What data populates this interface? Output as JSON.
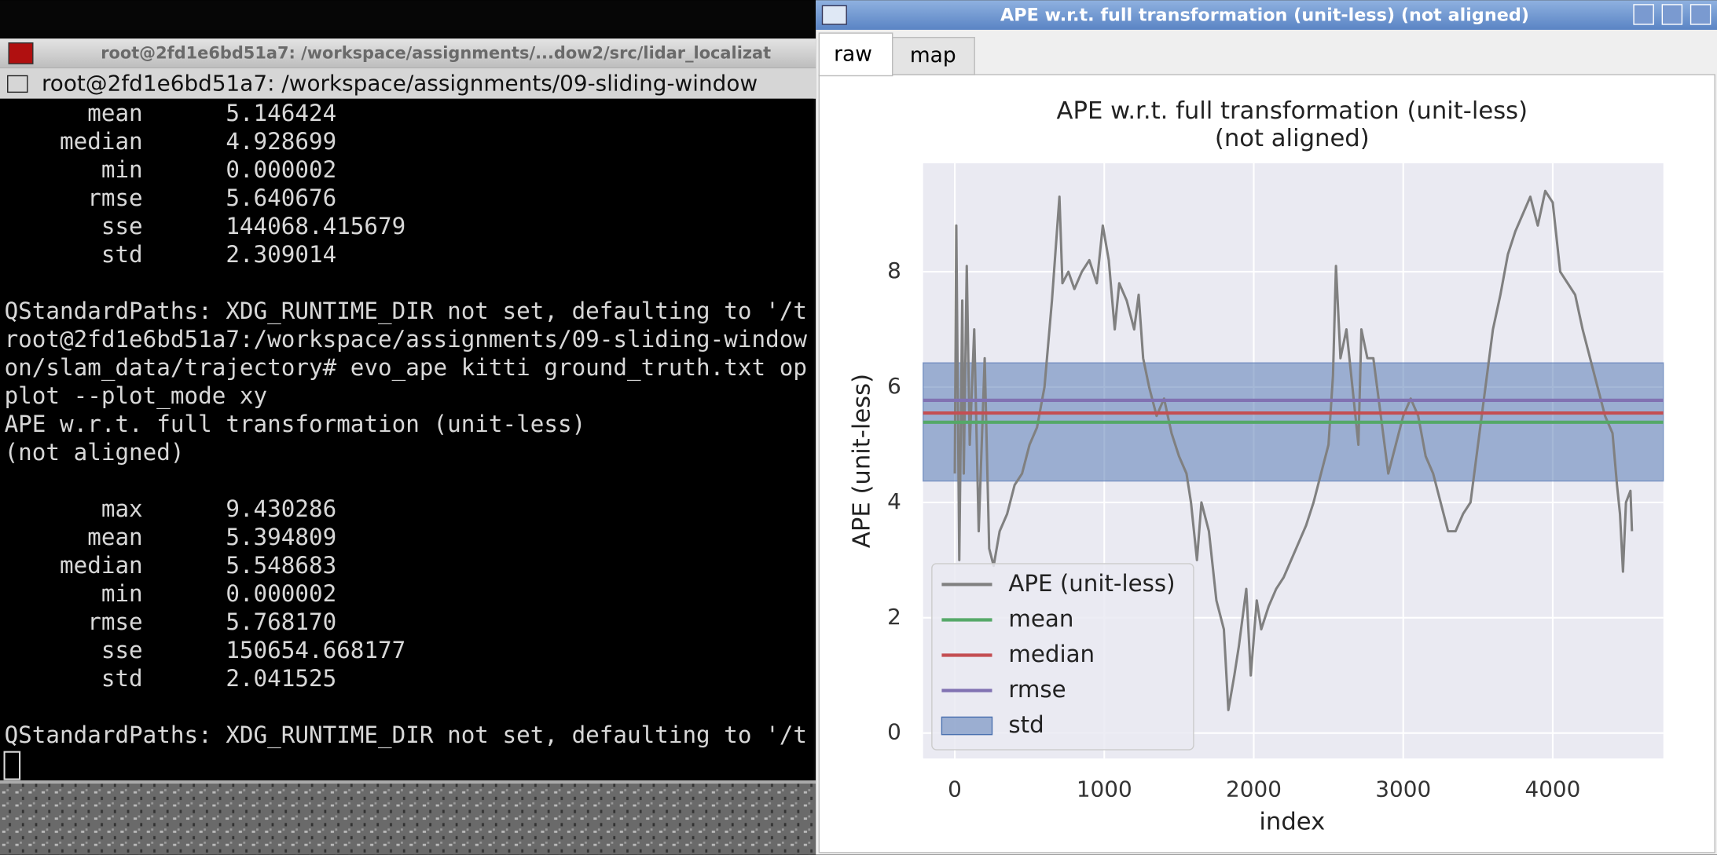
{
  "terminal": {
    "title": "root@2fd1e6bd51a7: /workspace/assignments/...dow2/src/lidar_localizat",
    "tab_title": "root@2fd1e6bd51a7: /workspace/assignments/09-sliding-window",
    "blocks": [
      [
        "      mean      5.146424",
        "    median      4.928699",
        "       min      0.000002",
        "      rmse      5.640676",
        "       sse      144068.415679",
        "       std      2.309014"
      ],
      [
        "QStandardPaths: XDG_RUNTIME_DIR not set, defaulting to '/t",
        "root@2fd1e6bd51a7:/workspace/assignments/09-sliding-window",
        "on/slam_data/trajectory# evo_ape kitti ground_truth.txt op",
        "plot --plot_mode xy",
        "APE w.r.t. full transformation (unit-less)",
        "(not aligned)"
      ],
      [
        "       max      9.430286",
        "      mean      5.394809",
        "    median      5.548683",
        "       min      0.000002",
        "      rmse      5.768170",
        "       sse      150654.668177",
        "       std      2.041525"
      ],
      [
        "QStandardPaths: XDG_RUNTIME_DIR not set, defaulting to '/t"
      ]
    ]
  },
  "plot_window": {
    "title": "APE w.r.t. full transformation (unit-less) (not aligned)",
    "tabs": [
      "raw",
      "map"
    ]
  },
  "chart_data": {
    "type": "line",
    "title": "APE w.r.t. full transformation (unit-less)",
    "subtitle": "(not aligned)",
    "x_label": "index",
    "y_label": "APE (unit-less)",
    "xlim": [
      -212,
      4740
    ],
    "ylim": [
      -0.44,
      9.88
    ],
    "xticks": [
      0,
      1000,
      2000,
      3000,
      4000
    ],
    "yticks": [
      0,
      2,
      4,
      6,
      8
    ],
    "grid": true,
    "series": [
      {
        "name": "APE (unit-less)",
        "color": "#808080",
        "kind": "line",
        "x": [
          0,
          10,
          30,
          50,
          60,
          80,
          100,
          130,
          160,
          200,
          230,
          260,
          300,
          350,
          400,
          450,
          500,
          550,
          600,
          650,
          700,
          720,
          760,
          800,
          850,
          900,
          950,
          990,
          1030,
          1070,
          1100,
          1150,
          1200,
          1230,
          1260,
          1300,
          1350,
          1400,
          1450,
          1500,
          1550,
          1580,
          1620,
          1650,
          1700,
          1750,
          1800,
          1830,
          1870,
          1900,
          1950,
          1980,
          2020,
          2050,
          2100,
          2150,
          2200,
          2250,
          2300,
          2350,
          2400,
          2450,
          2500,
          2530,
          2550,
          2580,
          2620,
          2660,
          2700,
          2720,
          2760,
          2800,
          2850,
          2900,
          2950,
          3000,
          3050,
          3100,
          3150,
          3200,
          3250,
          3300,
          3350,
          3400,
          3450,
          3500,
          3550,
          3600,
          3650,
          3700,
          3750,
          3800,
          3850,
          3900,
          3950,
          4000,
          4050,
          4100,
          4150,
          4200,
          4250,
          4300,
          4350,
          4400,
          4430,
          4450,
          4470,
          4490,
          4520,
          4530
        ],
        "values": [
          4.5,
          8.8,
          3.0,
          7.5,
          4.5,
          8.1,
          5.0,
          7.0,
          3.5,
          6.5,
          3.2,
          2.9,
          3.5,
          3.8,
          4.3,
          4.5,
          5.0,
          5.3,
          6.0,
          7.5,
          9.3,
          7.8,
          8.0,
          7.7,
          8.0,
          8.2,
          7.8,
          8.8,
          8.2,
          7.0,
          7.8,
          7.5,
          7.0,
          7.6,
          6.5,
          6.0,
          5.5,
          5.8,
          5.2,
          4.8,
          4.5,
          4.0,
          3.0,
          4.0,
          3.5,
          2.3,
          1.8,
          0.4,
          1.0,
          1.5,
          2.5,
          1.0,
          2.3,
          1.8,
          2.2,
          2.5,
          2.7,
          3.0,
          3.3,
          3.6,
          4.0,
          4.5,
          5.0,
          6.2,
          8.1,
          6.5,
          7.0,
          6.0,
          5.0,
          7.0,
          6.5,
          6.5,
          5.5,
          4.5,
          5.0,
          5.5,
          5.8,
          5.5,
          4.8,
          4.5,
          4.0,
          3.5,
          3.5,
          3.8,
          4.0,
          5.0,
          6.0,
          7.0,
          7.6,
          8.3,
          8.7,
          9.0,
          9.3,
          8.8,
          9.4,
          9.2,
          8.0,
          7.8,
          7.6,
          7.0,
          6.5,
          6.0,
          5.5,
          5.2,
          4.3,
          3.8,
          2.8,
          4.0,
          4.2,
          3.5
        ]
      },
      {
        "name": "mean",
        "color": "#55a868",
        "kind": "hline",
        "values": [
          5.39
        ]
      },
      {
        "name": "median",
        "color": "#c44e52",
        "kind": "hline",
        "values": [
          5.55
        ]
      },
      {
        "name": "rmse",
        "color": "#8172b2",
        "kind": "hline",
        "values": [
          5.77
        ]
      },
      {
        "name": "std",
        "color": "#4c72b0",
        "kind": "band",
        "values": [
          4.37,
          6.42
        ]
      }
    ]
  }
}
